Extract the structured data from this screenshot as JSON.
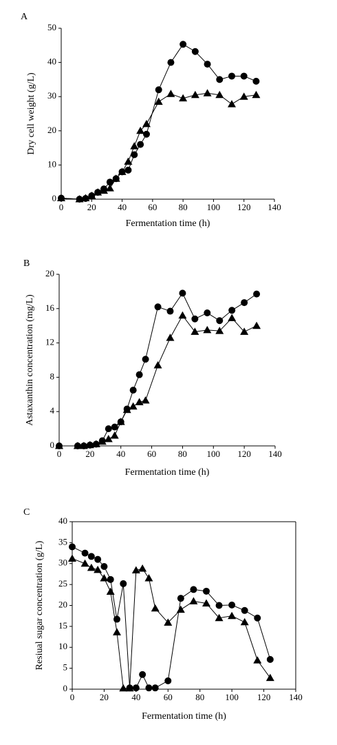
{
  "chart_data": [
    {
      "type": "line",
      "label": "A",
      "xlabel": "Fermentation time (h)",
      "ylabel": "Dry cell weight (g/L)",
      "xlim": [
        0,
        140
      ],
      "xticks": [
        0,
        20,
        40,
        60,
        80,
        100,
        120,
        140
      ],
      "ylim": [
        0,
        50
      ],
      "yticks": [
        0,
        10,
        20,
        30,
        40,
        50
      ],
      "series": [
        {
          "marker": "circle",
          "color": "#000000",
          "x": [
            0,
            12,
            16,
            20,
            24,
            28,
            32,
            36,
            40,
            44,
            48,
            52,
            56,
            64,
            72,
            80,
            88,
            96,
            104,
            112,
            120,
            128
          ],
          "values": [
            0.3,
            0,
            0.2,
            1,
            2,
            3,
            5,
            6,
            8,
            8.5,
            13,
            16,
            19,
            32,
            40,
            45.3,
            43.2,
            39.5,
            35,
            36,
            36,
            34.5
          ]
        },
        {
          "marker": "triangle",
          "color": "#000000",
          "x": [
            0,
            12,
            16,
            20,
            24,
            28,
            32,
            36,
            40,
            44,
            48,
            52,
            56,
            64,
            72,
            80,
            88,
            96,
            104,
            112,
            120,
            128
          ],
          "values": [
            0.3,
            0,
            0.3,
            1,
            2,
            2.5,
            3.2,
            6,
            8,
            11,
            15.5,
            20,
            22,
            28.5,
            30.8,
            29.5,
            30.5,
            31,
            30.5,
            27.8,
            30,
            30.5
          ]
        }
      ]
    },
    {
      "type": "line",
      "label": "B",
      "xlabel": "Fermentation time (h)",
      "ylabel": "Astaxanthin concentration (mg/L)",
      "xlim": [
        0,
        140
      ],
      "xticks": [
        0,
        20,
        40,
        60,
        80,
        100,
        120,
        140
      ],
      "ylim": [
        0,
        20
      ],
      "yticks": [
        0,
        4,
        8,
        12,
        16,
        20
      ],
      "series": [
        {
          "marker": "circle",
          "color": "#000000",
          "x": [
            0,
            12,
            16,
            20,
            24,
            28,
            32,
            36,
            40,
            44,
            48,
            52,
            56,
            64,
            72,
            80,
            88,
            96,
            104,
            112,
            120,
            128
          ],
          "values": [
            0,
            0,
            0,
            0.1,
            0.2,
            0.6,
            2,
            2.2,
            2.8,
            4.3,
            6.5,
            8.3,
            10.1,
            16.2,
            15.7,
            17.8,
            14.8,
            15.5,
            14.6,
            15.8,
            16.7,
            17.7
          ]
        },
        {
          "marker": "triangle",
          "color": "#000000",
          "x": [
            0,
            12,
            16,
            20,
            24,
            28,
            32,
            36,
            40,
            44,
            48,
            52,
            56,
            64,
            72,
            80,
            88,
            96,
            104,
            112,
            120,
            128
          ],
          "values": [
            0,
            0,
            0,
            0.1,
            0.2,
            0.5,
            0.8,
            1.2,
            2.8,
            4.2,
            4.6,
            5.1,
            5.3,
            9.4,
            12.6,
            15.2,
            13.3,
            13.5,
            13.4,
            14.9,
            13.3,
            14
          ]
        }
      ]
    },
    {
      "type": "line",
      "label": "C",
      "xlabel": "Fermentation time (h)",
      "ylabel": "Resiual sugar concentration (g/L)",
      "frame": true,
      "xlim": [
        0,
        140
      ],
      "xticks": [
        0,
        20,
        40,
        60,
        80,
        100,
        120,
        140
      ],
      "ylim": [
        0,
        40
      ],
      "yticks": [
        0,
        5,
        10,
        15,
        20,
        25,
        30,
        35,
        40
      ],
      "series": [
        {
          "marker": "circle",
          "color": "#000000",
          "x": [
            0,
            8,
            12,
            16,
            20,
            24,
            28,
            32,
            36,
            40,
            44,
            48,
            52,
            60,
            68,
            76,
            84,
            92,
            100,
            108,
            116,
            124
          ],
          "values": [
            34,
            32.5,
            31.7,
            31,
            29.3,
            26.2,
            16.7,
            25.2,
            0.3,
            0.3,
            3.5,
            0.3,
            0.3,
            2,
            21.7,
            23.8,
            23.4,
            20,
            20.1,
            18.8,
            17,
            7.1
          ]
        },
        {
          "marker": "triangle",
          "color": "#000000",
          "x": [
            0,
            8,
            12,
            16,
            20,
            24,
            28,
            32,
            36,
            40,
            44,
            48,
            52,
            60,
            68,
            76,
            84,
            92,
            100,
            108,
            116,
            124
          ],
          "values": [
            31.2,
            30,
            29,
            28.5,
            26.5,
            23.3,
            13.6,
            0.2,
            0.2,
            28.4,
            28.8,
            26.5,
            19.3,
            15.9,
            19,
            21,
            20.5,
            17,
            17.5,
            16,
            6.9,
            2.7
          ]
        }
      ]
    }
  ]
}
